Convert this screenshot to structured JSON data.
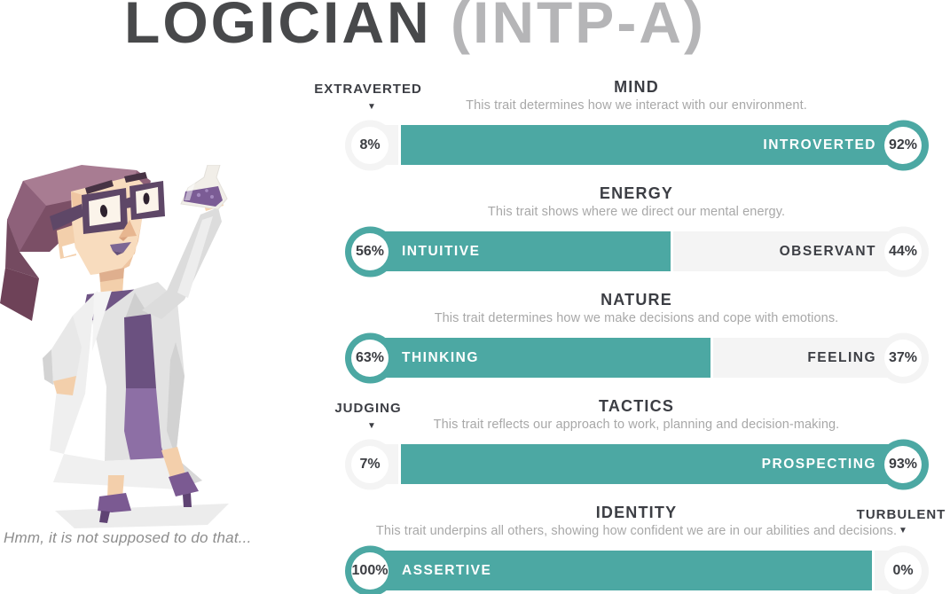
{
  "title": {
    "name": "LOGICIAN",
    "code": "(INTP-A)"
  },
  "character_caption": "Hmm, it is not supposed to do that...",
  "icons": {
    "down_arrow": "▼"
  },
  "colors": {
    "accent_teal": "#4CA8A3",
    "bar_background": "#F4F4F4",
    "heading_text": "#3C3E44",
    "description_text": "#A8A8A8",
    "percent_text": "#3B3D42",
    "title_primary": "#48494B",
    "title_secondary": "#B5B5B7",
    "caption_text": "#8D8D8D"
  },
  "traits": [
    {
      "name": "MIND",
      "description": "This trait determines how we interact with our environment.",
      "left": {
        "label": "EXTRAVERTED",
        "pct": 8,
        "winner": false,
        "label_placement": "above-bar"
      },
      "right": {
        "label": "INTROVERTED",
        "pct": 92,
        "winner": true,
        "label_placement": "on-bar"
      }
    },
    {
      "name": "ENERGY",
      "description": "This trait shows where we direct our mental energy.",
      "left": {
        "label": "INTUITIVE",
        "pct": 56,
        "winner": true,
        "label_placement": "on-bar"
      },
      "right": {
        "label": "OBSERVANT",
        "pct": 44,
        "winner": false,
        "label_placement": "on-bar"
      }
    },
    {
      "name": "NATURE",
      "description": "This trait determines how we make decisions and cope with emotions.",
      "left": {
        "label": "THINKING",
        "pct": 63,
        "winner": true,
        "label_placement": "on-bar"
      },
      "right": {
        "label": "FEELING",
        "pct": 37,
        "winner": false,
        "label_placement": "on-bar"
      }
    },
    {
      "name": "TACTICS",
      "description": "This trait reflects our approach to work, planning and decision-making.",
      "left": {
        "label": "JUDGING",
        "pct": 7,
        "winner": false,
        "label_placement": "above-bar"
      },
      "right": {
        "label": "PROSPECTING",
        "pct": 93,
        "winner": true,
        "label_placement": "on-bar"
      }
    },
    {
      "name": "IDENTITY",
      "description": "This trait underpins all others, showing how confident we are in our abilities and decisions.",
      "left": {
        "label": "ASSERTIVE",
        "pct": 100,
        "winner": true,
        "label_placement": "on-bar"
      },
      "right": {
        "label": "TURBULENT",
        "pct": 0,
        "winner": false,
        "label_placement": "above-bar"
      }
    }
  ]
}
